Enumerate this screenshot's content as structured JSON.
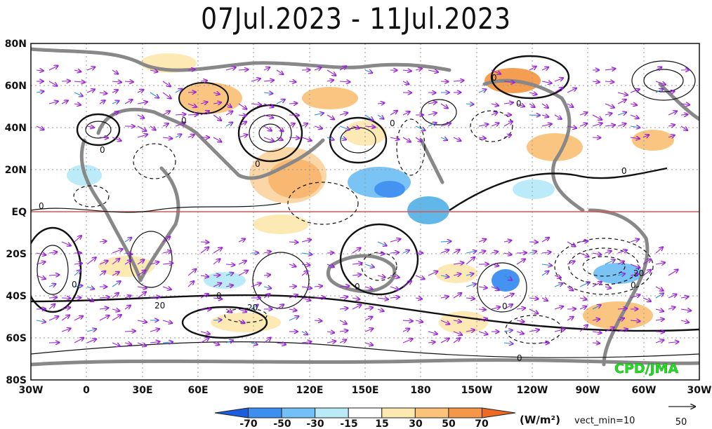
{
  "title": "07Jul.2023 - 11Jul.2023",
  "map": {
    "lat_labels": [
      "80N",
      "60N",
      "40N",
      "20N",
      "EQ",
      "20S",
      "40S",
      "60S",
      "80S"
    ],
    "lon_labels": [
      "30W",
      "0",
      "30E",
      "60E",
      "90E",
      "120E",
      "150E",
      "180",
      "150W",
      "120W",
      "90W",
      "60W",
      "30W"
    ],
    "contour_labels": [
      "0",
      "0",
      "0",
      "0",
      "0",
      "0",
      "0",
      "0",
      "0",
      "0",
      "20",
      "20",
      "0",
      "0",
      "0",
      "0",
      "20"
    ],
    "credit": "CPD/JMA",
    "colors": {
      "positive_anomaly": "#f5b060",
      "negative_anomaly": "#5ab4e8",
      "vectors": "#9a22d8",
      "equator": "#e05050",
      "credit": "#22dd22"
    }
  },
  "colorbar": {
    "tick_labels": [
      "-70",
      "-50",
      "-30",
      "-15",
      "15",
      "30",
      "50",
      "70"
    ],
    "units": "(W/m²)",
    "vect_min": "vect_min=10",
    "colors": [
      "#1a5de0",
      "#3c8ef0",
      "#72c0f5",
      "#b8eaf8",
      "#ffffff",
      "#fde8b0",
      "#fac27a",
      "#f49848",
      "#ee6a22"
    ]
  },
  "vector_legend": {
    "value": "50"
  }
}
